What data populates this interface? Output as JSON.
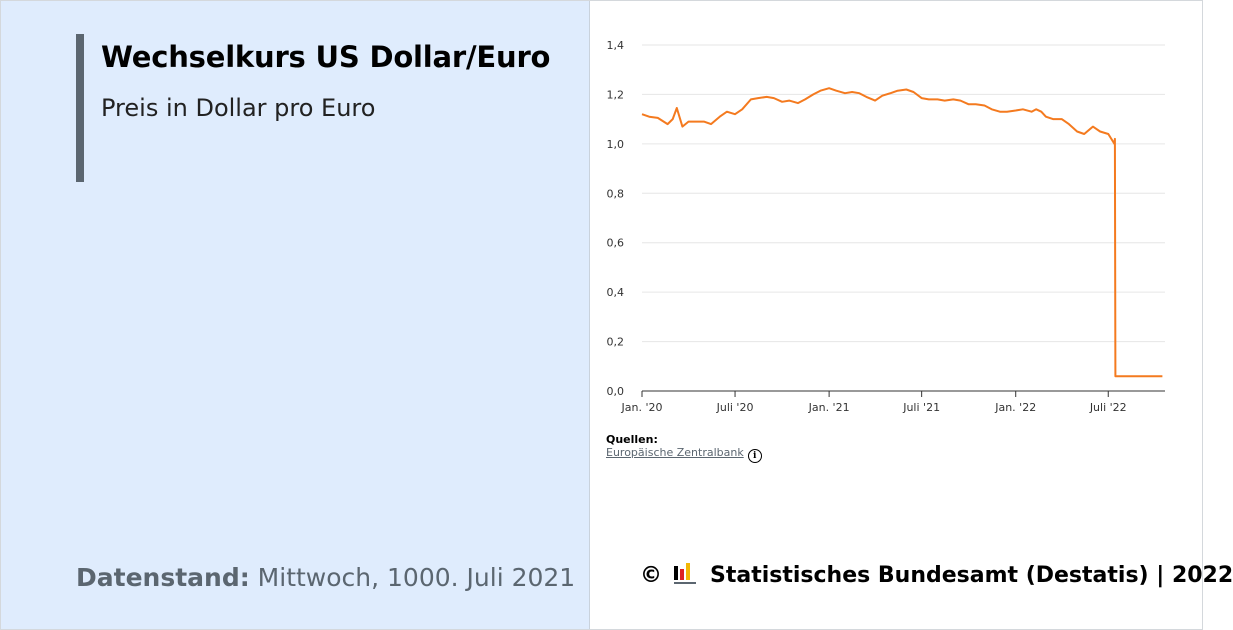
{
  "title": "Wechselkurs US Dollar/Euro",
  "subtitle": "Preis in Dollar pro Euro",
  "datenstand": {
    "label": "Datenstand:",
    "value": "Mittwoch, 1000. Juli 2021"
  },
  "sources": {
    "label": "Quellen:",
    "link": "Europäische Zentralbank"
  },
  "footer": {
    "copyright": "©",
    "text": "Statistisches Bundesamt (Destatis) | 2022"
  },
  "colors": {
    "line": "#f47a1f",
    "panel": "#dfecfd",
    "accent_bar": "#5b6670"
  },
  "chart_data": {
    "type": "line",
    "title": "Wechselkurs US Dollar/Euro",
    "subtitle": "Preis in Dollar pro Euro",
    "xlabel": "",
    "ylabel": "",
    "ylim": [
      0,
      1.4
    ],
    "yticks": [
      "0,0",
      "0,2",
      "0,4",
      "0,6",
      "0,8",
      "1,0",
      "1,2",
      "1,4"
    ],
    "xticks": [
      "Jan. '20",
      "Juli '20",
      "Jan. '21",
      "Juli '21",
      "Jan. '22",
      "Juli '22"
    ],
    "xlim": [
      "2020-01-01",
      "2022-10-20"
    ],
    "grid": true,
    "legend": "none",
    "series": [
      {
        "values": [
          [
            "2020-01-01",
            1.12
          ],
          [
            "2020-01-15",
            1.11
          ],
          [
            "2020-02-01",
            1.105
          ],
          [
            "2020-02-20",
            1.08
          ],
          [
            "2020-03-01",
            1.1
          ],
          [
            "2020-03-09",
            1.145
          ],
          [
            "2020-03-20",
            1.07
          ],
          [
            "2020-04-01",
            1.09
          ],
          [
            "2020-04-15",
            1.09
          ],
          [
            "2020-05-01",
            1.09
          ],
          [
            "2020-05-15",
            1.08
          ],
          [
            "2020-06-01",
            1.11
          ],
          [
            "2020-06-15",
            1.13
          ],
          [
            "2020-07-01",
            1.12
          ],
          [
            "2020-07-15",
            1.14
          ],
          [
            "2020-08-01",
            1.18
          ],
          [
            "2020-08-15",
            1.185
          ],
          [
            "2020-09-01",
            1.19
          ],
          [
            "2020-09-15",
            1.185
          ],
          [
            "2020-10-01",
            1.17
          ],
          [
            "2020-10-15",
            1.175
          ],
          [
            "2020-11-01",
            1.165
          ],
          [
            "2020-11-15",
            1.18
          ],
          [
            "2020-12-01",
            1.2
          ],
          [
            "2020-12-15",
            1.215
          ],
          [
            "2021-01-01",
            1.225
          ],
          [
            "2021-01-15",
            1.215
          ],
          [
            "2021-02-01",
            1.205
          ],
          [
            "2021-02-15",
            1.21
          ],
          [
            "2021-03-01",
            1.205
          ],
          [
            "2021-03-15",
            1.19
          ],
          [
            "2021-04-01",
            1.175
          ],
          [
            "2021-04-15",
            1.195
          ],
          [
            "2021-05-01",
            1.205
          ],
          [
            "2021-05-15",
            1.215
          ],
          [
            "2021-06-01",
            1.22
          ],
          [
            "2021-06-15",
            1.21
          ],
          [
            "2021-07-01",
            1.185
          ],
          [
            "2021-07-15",
            1.18
          ],
          [
            "2021-08-01",
            1.18
          ],
          [
            "2021-08-15",
            1.175
          ],
          [
            "2021-09-01",
            1.18
          ],
          [
            "2021-09-15",
            1.175
          ],
          [
            "2021-10-01",
            1.16
          ],
          [
            "2021-10-15",
            1.16
          ],
          [
            "2021-11-01",
            1.155
          ],
          [
            "2021-11-15",
            1.14
          ],
          [
            "2021-12-01",
            1.13
          ],
          [
            "2021-12-15",
            1.13
          ],
          [
            "2022-01-01",
            1.135
          ],
          [
            "2022-01-15",
            1.14
          ],
          [
            "2022-02-01",
            1.13
          ],
          [
            "2022-02-10",
            1.14
          ],
          [
            "2022-02-20",
            1.13
          ],
          [
            "2022-03-01",
            1.11
          ],
          [
            "2022-03-15",
            1.1
          ],
          [
            "2022-04-01",
            1.1
          ],
          [
            "2022-04-15",
            1.08
          ],
          [
            "2022-05-01",
            1.05
          ],
          [
            "2022-05-15",
            1.04
          ],
          [
            "2022-06-01",
            1.07
          ],
          [
            "2022-06-15",
            1.05
          ],
          [
            "2022-07-01",
            1.04
          ],
          [
            "2022-07-10",
            1.01
          ],
          [
            "2022-07-13",
            1.0
          ],
          [
            "2022-07-14",
            1.02
          ],
          [
            "2022-07-15",
            0.06
          ],
          [
            "2022-08-01",
            0.06
          ],
          [
            "2022-09-01",
            0.06
          ],
          [
            "2022-10-15",
            0.06
          ]
        ]
      }
    ]
  }
}
